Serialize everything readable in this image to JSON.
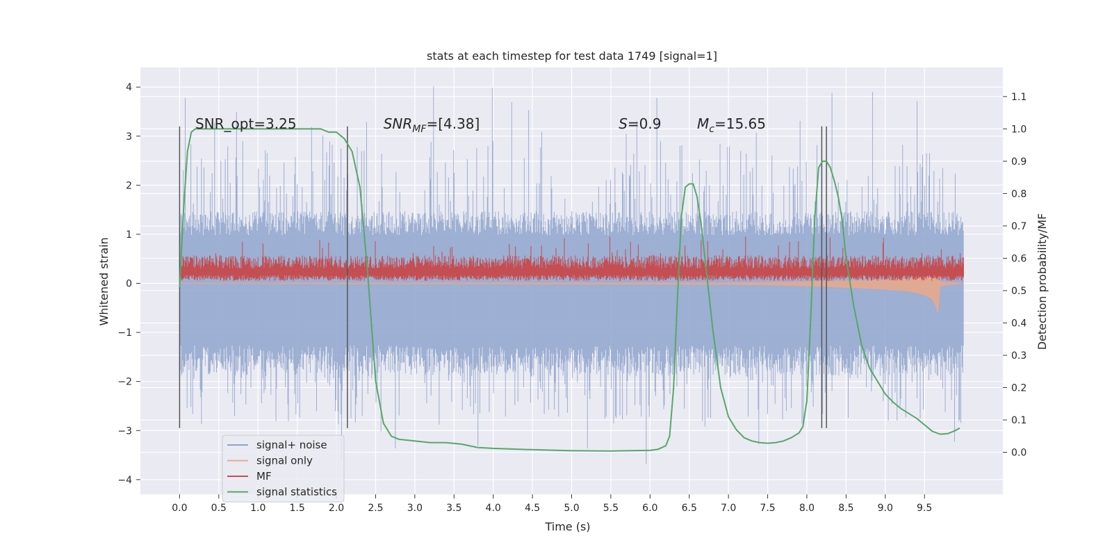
{
  "chart_data": {
    "type": "line",
    "title": "stats at each timestep for test data 1749 [signal=1]",
    "xlabel": "Time (s)",
    "ylabel": "Whitened strain",
    "y2label": "Detection probability/MF",
    "xlim": [
      -0.5,
      10.5
    ],
    "ylim": [
      -4.3,
      4.4
    ],
    "y2lim": [
      -0.13,
      1.19
    ],
    "x_ticks": [
      0.0,
      0.5,
      1.0,
      1.5,
      2.0,
      2.5,
      3.0,
      3.5,
      4.0,
      4.5,
      5.0,
      5.5,
      6.0,
      6.5,
      7.0,
      7.5,
      8.0,
      8.5,
      9.0,
      9.5
    ],
    "x_tick_labels": [
      "0.0",
      "0.5",
      "1.0",
      "1.5",
      "2.0",
      "2.5",
      "3.0",
      "3.5",
      "4.0",
      "4.5",
      "5.0",
      "5.5",
      "6.0",
      "6.5",
      "7.0",
      "7.5",
      "8.0",
      "8.5",
      "9.0",
      "9.5"
    ],
    "y_ticks": [
      -4,
      -3,
      -2,
      -1,
      0,
      1,
      2,
      3,
      4
    ],
    "y_tick_labels": [
      "−4",
      "−3",
      "−2",
      "−1",
      "0",
      "1",
      "2",
      "3",
      "4"
    ],
    "y2_ticks": [
      0.0,
      0.1,
      0.2,
      0.3,
      0.4,
      0.5,
      0.6,
      0.7,
      0.8,
      0.9,
      1.0,
      1.1
    ],
    "y2_tick_labels": [
      "0.0",
      "0.1",
      "0.2",
      "0.3",
      "0.4",
      "0.5",
      "0.6",
      "0.7",
      "0.8",
      "0.9",
      "1.0",
      "1.1"
    ],
    "grid": true,
    "legend_position": "lower-left",
    "annotations": [
      {
        "text": "SNR_opt=3.25",
        "x": 0.2,
        "y": 3.25
      },
      {
        "text_main": "SNR",
        "text_sub": "MF",
        "text_rest": "=[4.38]",
        "x": 2.6,
        "y": 3.25
      },
      {
        "text_main": "S",
        "text_rest": "=0.9",
        "x": 5.6,
        "y": 3.25
      },
      {
        "text_main": "M",
        "text_sub": "c",
        "text_rest": "=15.65",
        "x": 6.6,
        "y": 3.25
      }
    ],
    "markers": [
      {
        "x": 0.0,
        "y_from": -2.95,
        "y_to": 3.2
      },
      {
        "x": 2.14,
        "y_from": -2.95,
        "y_to": 3.2
      },
      {
        "x": 8.19,
        "y_from": -2.95,
        "y_to": 3.2
      },
      {
        "x": 8.25,
        "y_from": -2.95,
        "y_to": 3.2
      }
    ],
    "series": [
      {
        "name": "signal+ noise",
        "color": "#8fa4cc",
        "axis": "left",
        "x_range": [
          0.0,
          10.0
        ],
        "envelope": {
          "lower_typical": -1.8,
          "upper_typical": 1.4,
          "peaks_max": 4.05,
          "troughs_min": -3.8
        }
      },
      {
        "name": "signal only",
        "color": "#e8a98e",
        "axis": "left",
        "x": [
          0.0,
          7.0,
          7.5,
          8.0,
          8.5,
          9.0,
          9.3,
          9.5,
          9.6,
          9.65,
          9.67,
          9.7,
          10.0
        ],
        "y_lower": [
          0.0,
          -0.02,
          -0.03,
          -0.05,
          -0.08,
          -0.12,
          -0.16,
          -0.23,
          -0.32,
          -0.48,
          -0.6,
          -0.05,
          0.0
        ],
        "y_upper": [
          0.0,
          0.01,
          0.02,
          0.03,
          0.05,
          0.07,
          0.09,
          0.12,
          0.16,
          0.2,
          0.22,
          0.03,
          0.0
        ]
      },
      {
        "name": "MF",
        "color": "#c44e52",
        "axis": "left",
        "x_range": [
          0.0,
          10.0
        ],
        "band": {
          "lower": 0.05,
          "upper": 0.55,
          "peaks_max": 1.0
        }
      },
      {
        "name": "signal statistics",
        "color": "#55a868",
        "axis": "right",
        "x": [
          0.0,
          0.05,
          0.1,
          0.15,
          0.2,
          0.3,
          0.5,
          1.0,
          1.5,
          1.8,
          1.9,
          2.0,
          2.1,
          2.2,
          2.3,
          2.4,
          2.5,
          2.6,
          2.7,
          2.8,
          3.0,
          3.2,
          3.4,
          3.6,
          3.8,
          4.0,
          4.5,
          5.0,
          5.5,
          6.0,
          6.1,
          6.2,
          6.25,
          6.3,
          6.35,
          6.4,
          6.45,
          6.5,
          6.55,
          6.6,
          6.65,
          6.7,
          6.8,
          6.9,
          7.0,
          7.1,
          7.2,
          7.3,
          7.4,
          7.5,
          7.6,
          7.7,
          7.8,
          7.9,
          7.95,
          8.0,
          8.05,
          8.1,
          8.15,
          8.2,
          8.25,
          8.3,
          8.35,
          8.4,
          8.45,
          8.5,
          8.6,
          8.7,
          8.8,
          8.9,
          9.0,
          9.1,
          9.2,
          9.3,
          9.4,
          9.5,
          9.6,
          9.7,
          9.8,
          9.9,
          9.95
        ],
        "y": [
          0.51,
          0.75,
          0.93,
          0.99,
          1.0,
          1.0,
          1.0,
          1.0,
          1.0,
          1.0,
          0.99,
          0.99,
          0.97,
          0.93,
          0.82,
          0.55,
          0.22,
          0.09,
          0.05,
          0.04,
          0.035,
          0.03,
          0.03,
          0.025,
          0.015,
          0.012,
          0.008,
          0.005,
          0.004,
          0.006,
          0.009,
          0.02,
          0.05,
          0.2,
          0.48,
          0.73,
          0.82,
          0.83,
          0.83,
          0.79,
          0.71,
          0.6,
          0.38,
          0.2,
          0.11,
          0.07,
          0.045,
          0.035,
          0.03,
          0.028,
          0.03,
          0.035,
          0.045,
          0.06,
          0.08,
          0.16,
          0.42,
          0.72,
          0.88,
          0.9,
          0.9,
          0.88,
          0.84,
          0.79,
          0.72,
          0.6,
          0.45,
          0.33,
          0.26,
          0.22,
          0.18,
          0.155,
          0.135,
          0.12,
          0.105,
          0.085,
          0.065,
          0.056,
          0.058,
          0.068,
          0.075
        ]
      }
    ]
  }
}
